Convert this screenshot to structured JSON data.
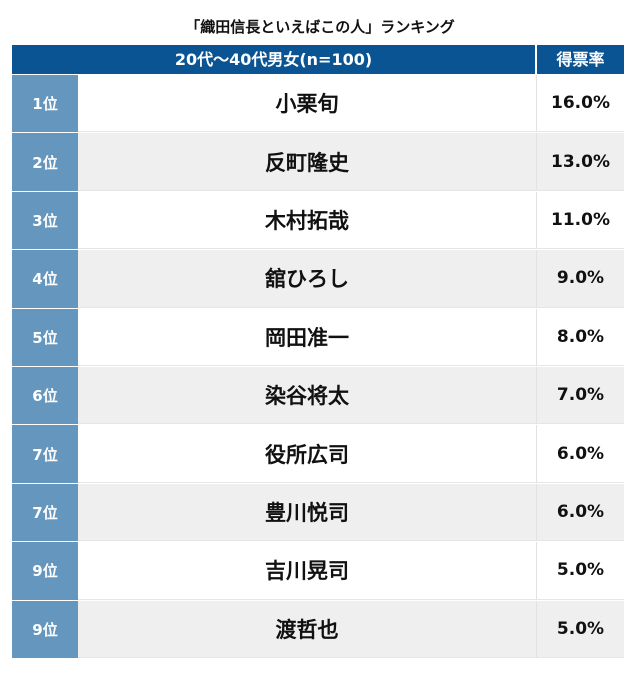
{
  "chart_data": {
    "type": "table",
    "title": "「織田信長といえばこの人」ランキング",
    "columns": [
      "20代〜40代男女(n=100)",
      "得票率"
    ],
    "rows": [
      {
        "rank": "1位",
        "name": "小栗旬",
        "value": "16.0%"
      },
      {
        "rank": "2位",
        "name": "反町隆史",
        "value": "13.0%"
      },
      {
        "rank": "3位",
        "name": "木村拓哉",
        "value": "11.0%"
      },
      {
        "rank": "4位",
        "name": "舘ひろし",
        "value": "9.0%"
      },
      {
        "rank": "5位",
        "name": "岡田准一",
        "value": "8.0%"
      },
      {
        "rank": "6位",
        "name": "染谷将太",
        "value": "7.0%"
      },
      {
        "rank": "7位",
        "name": "役所広司",
        "value": "6.0%"
      },
      {
        "rank": "7位",
        "name": "豊川悦司",
        "value": "6.0%"
      },
      {
        "rank": "9位",
        "name": "吉川晃司",
        "value": "5.0%"
      },
      {
        "rank": "9位",
        "name": "渡哲也",
        "value": "5.0%"
      }
    ],
    "colors": {
      "header": "#0b5494",
      "rank_cell": "#6496be",
      "alt_row": "#efefef"
    }
  }
}
